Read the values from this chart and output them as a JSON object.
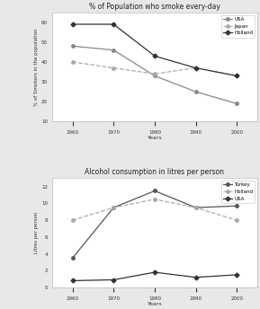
{
  "years": [
    1960,
    1970,
    1980,
    1990,
    2000
  ],
  "smoking_title": "% of Population who smoke every-day",
  "smoking_ylabel": "% of Smokers in the population",
  "smoking_xlabel": "Years",
  "smoking_ylim": [
    10,
    65
  ],
  "smoking_yticks": [
    10,
    20,
    30,
    40,
    50,
    60
  ],
  "smoking_data": {
    "USA": [
      48,
      46,
      33,
      25,
      19
    ],
    "Japan": [
      40,
      37,
      34,
      37,
      33
    ],
    "Holland": [
      59,
      59,
      43,
      37,
      33
    ]
  },
  "smoking_colors": {
    "USA": "#888888",
    "Japan": "#aaaaaa",
    "Holland": "#333333"
  },
  "smoking_markers": {
    "USA": "o",
    "Japan": "o",
    "Holland": "D"
  },
  "smoking_linestyles": {
    "USA": "-",
    "Japan": "--",
    "Holland": "-"
  },
  "alcohol_title": "Alcohol consumption in litres per person",
  "alcohol_ylabel": "Litres per person",
  "alcohol_xlabel": "Years",
  "alcohol_ylim": [
    0,
    13
  ],
  "alcohol_yticks": [
    0,
    2,
    4,
    6,
    8,
    10,
    12
  ],
  "alcohol_data": {
    "Turkey": [
      3.5,
      9.5,
      11.5,
      9.5,
      9.7
    ],
    "Holland": [
      8.0,
      9.5,
      10.5,
      9.5,
      8.0
    ],
    "USA": [
      0.8,
      0.9,
      1.8,
      1.2,
      1.5
    ]
  },
  "alcohol_colors": {
    "Turkey": "#555555",
    "Holland": "#aaaaaa",
    "USA": "#333333"
  },
  "alcohol_markers": {
    "Turkey": "o",
    "Holland": "o",
    "USA": "D"
  },
  "alcohol_linestyles": {
    "Turkey": "-",
    "Holland": "--",
    "USA": "-"
  },
  "bg_color": "#e8e8e8",
  "plot_bg": "#ffffff",
  "border_color": "#bbbbbb"
}
